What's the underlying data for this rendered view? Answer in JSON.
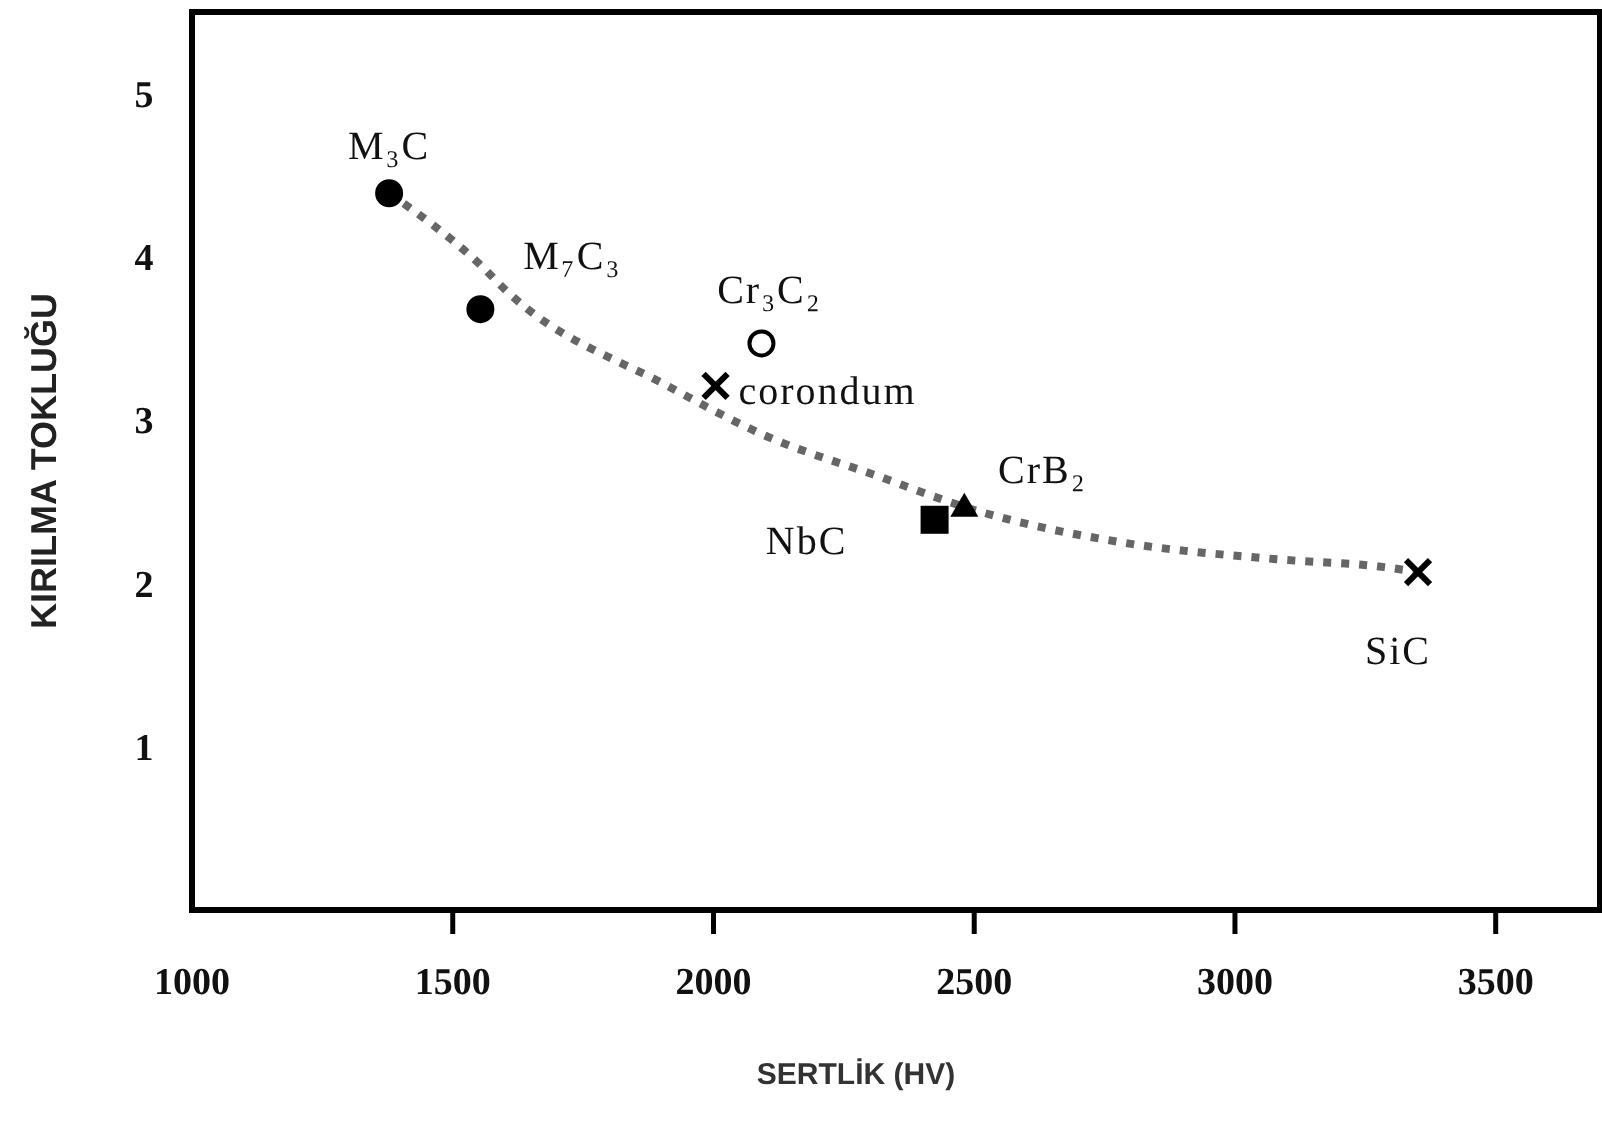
{
  "chart_data": {
    "type": "scatter",
    "xlabel": "SERTLİK (HV)",
    "ylabel": "KIRILMA TOKLUĞU",
    "xlim": [
      1000,
      3700
    ],
    "xticks": [
      1000,
      1500,
      2000,
      2500,
      3000,
      3500
    ],
    "ylim": [
      0,
      5.5
    ],
    "yticks": [
      1,
      2,
      3,
      4,
      5
    ],
    "series": [
      {
        "type": "line",
        "color": "#666666",
        "line_style": "dotted",
        "marker": "none",
        "x": [
          1378,
          1550,
          1607,
          1912,
          2103,
          2313,
          2500,
          2786,
          3073,
          3286,
          3351
        ],
        "values": [
          4.39,
          3.96,
          3.78,
          3.21,
          2.9,
          2.66,
          2.45,
          2.25,
          2.15,
          2.1,
          2.07
        ]
      },
      {
        "name": "M₃C",
        "color": "#000000",
        "marker": "circle",
        "x": [
          1378
        ],
        "values": [
          4.39
        ]
      },
      {
        "name": "M₇C₃",
        "color": "#000000",
        "marker": "circle",
        "x": [
          1553
        ],
        "values": [
          3.68
        ]
      },
      {
        "name": "Cr₃C₂",
        "color": "#ffffff",
        "marker": "circle",
        "x": [
          2092
        ],
        "values": [
          3.47
        ]
      },
      {
        "name": "corondum",
        "color": "#000000",
        "marker": "cross",
        "x": [
          2004
        ],
        "values": [
          3.21
        ]
      },
      {
        "name": "NbC",
        "color": "#000000",
        "marker": "square",
        "x": [
          2424
        ],
        "values": [
          2.39
        ]
      },
      {
        "name": "CrB₂",
        "color": "#000000",
        "marker": "triangle",
        "x": [
          2481
        ],
        "values": [
          2.47
        ]
      },
      {
        "name": "SiC",
        "color": "#000000",
        "marker": "cross",
        "x": [
          3351
        ],
        "values": [
          2.07
        ]
      }
    ]
  }
}
